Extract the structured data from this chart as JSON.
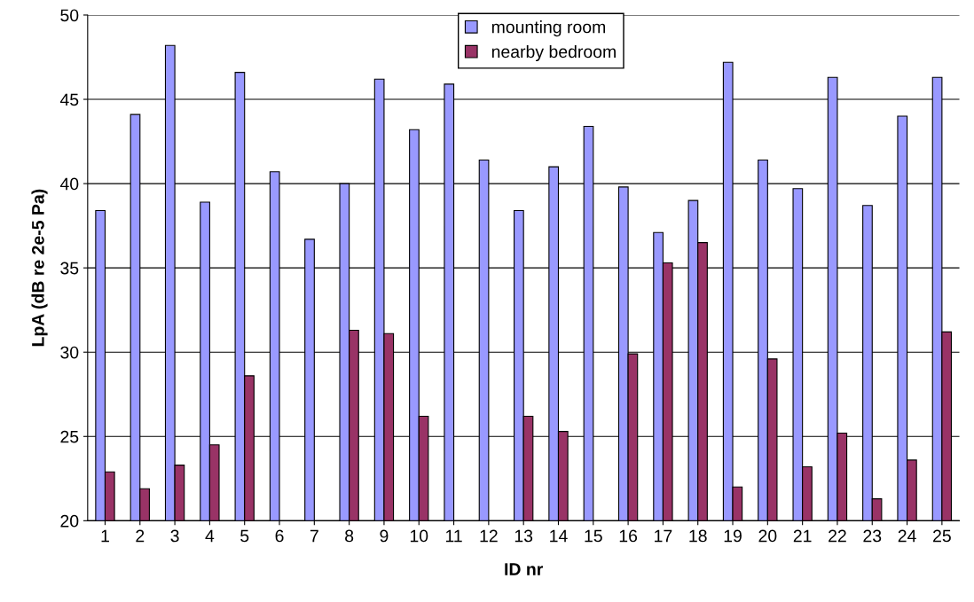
{
  "chart_data": {
    "type": "bar",
    "xlabel": "ID nr",
    "ylabel": "LpA (dB re 2e-5 Pa)",
    "categories": [
      "1",
      "2",
      "3",
      "4",
      "5",
      "6",
      "7",
      "8",
      "9",
      "10",
      "11",
      "12",
      "13",
      "14",
      "15",
      "16",
      "17",
      "18",
      "19",
      "20",
      "21",
      "22",
      "23",
      "24",
      "25"
    ],
    "series": [
      {
        "name": "mounting room",
        "color": "#9999ff",
        "values": [
          38.4,
          44.1,
          48.2,
          38.9,
          46.6,
          40.7,
          36.7,
          40.0,
          46.2,
          43.2,
          45.9,
          41.4,
          38.4,
          41.0,
          43.4,
          39.8,
          37.1,
          39.0,
          47.2,
          41.4,
          39.7,
          46.3,
          38.7,
          44.0,
          46.3
        ]
      },
      {
        "name": "nearby bedroom",
        "color": "#993366",
        "values": [
          22.9,
          21.9,
          23.3,
          24.5,
          28.6,
          null,
          null,
          31.3,
          31.1,
          26.2,
          null,
          null,
          26.2,
          25.3,
          null,
          29.9,
          35.3,
          36.5,
          22.0,
          29.6,
          23.2,
          25.2,
          21.3,
          23.6,
          31.2
        ]
      }
    ],
    "ylim": [
      20,
      50
    ],
    "yticks": [
      20,
      25,
      30,
      35,
      40,
      45,
      50
    ],
    "grid": "y",
    "legend": "top center"
  }
}
